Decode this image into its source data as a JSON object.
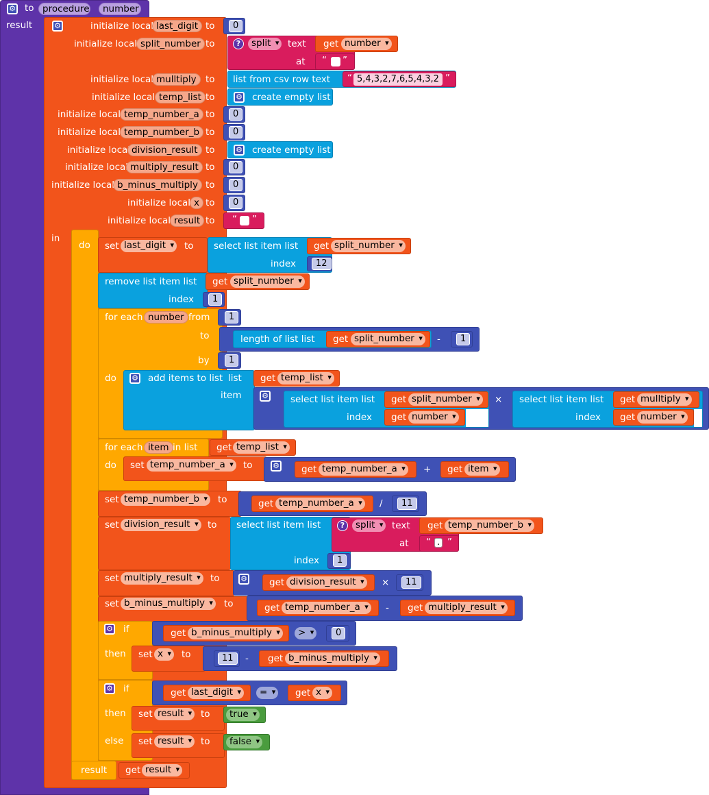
{
  "procedure": {
    "keyword_to": "to",
    "name": "procedure",
    "param": "number",
    "result_label": "result"
  },
  "locals": [
    {
      "label": "initialize local",
      "name": "last_digit",
      "to": "to",
      "value": "0"
    },
    {
      "label": "initialize local",
      "name": "split_number",
      "to": "to"
    },
    {
      "label": "initialize local",
      "name": "mulltiply",
      "to": "to"
    },
    {
      "label": "initialize local",
      "name": "temp_list",
      "to": "to"
    },
    {
      "label": "initialize local",
      "name": "temp_number_a",
      "to": "to",
      "value": "0"
    },
    {
      "label": "initialize local",
      "name": "temp_number_b",
      "to": "to",
      "value": "0"
    },
    {
      "label": "initialize local",
      "name": "division_result",
      "to": "to"
    },
    {
      "label": "initialize local",
      "name": "multiply_result",
      "to": "to",
      "value": "0"
    },
    {
      "label": "initialize local",
      "name": "b_minus_multiply",
      "to": "to",
      "value": "0"
    },
    {
      "label": "initialize local",
      "name": "x",
      "to": "to",
      "value": "0"
    },
    {
      "label": "initialize local",
      "name": "result",
      "to": "to"
    }
  ],
  "split_block": {
    "op": "split",
    "text_label": "text",
    "at_label": "at",
    "get": "get",
    "var": "number"
  },
  "csv_block": {
    "label": "list from csv row text",
    "value": "5,4,3,2,7,6,5,4,3,2"
  },
  "empty_list": "create empty list",
  "keywords": {
    "in": "in",
    "do": "do",
    "set": "set",
    "to": "to",
    "get": "get",
    "index": "index",
    "result": "result",
    "if": "if",
    "then": "then",
    "else": "else",
    "from": "from",
    "by": "by",
    "item": "item"
  },
  "stmts": {
    "set_last_digit": {
      "var": "last_digit",
      "select_label": "select list item  list",
      "list_var": "split_number",
      "index": "12"
    },
    "remove_item": {
      "label": "remove list item  list",
      "list_var": "split_number",
      "index": "1"
    },
    "for_range": {
      "label": "for each",
      "var": "number",
      "from": "1",
      "length_label": "length of list  list",
      "list_var": "split_number",
      "minus": "-",
      "minus_val": "1",
      "by": "1"
    },
    "add_items": {
      "label": "add items to list",
      "list_label": "list",
      "list_var": "temp_list",
      "item_label": "item",
      "left_select": "select list item  list",
      "left_list": "split_number",
      "left_index": "number",
      "times": "×",
      "right_select": "select list item  list",
      "right_list": "mulltiply",
      "right_index": "number"
    },
    "for_list": {
      "label": "for each",
      "var": "item",
      "in_list": "in list",
      "list_var": "temp_list"
    },
    "set_temp_a": {
      "var": "temp_number_a",
      "a": "temp_number_a",
      "plus": "+",
      "b": "item"
    },
    "set_temp_b": {
      "var": "temp_number_b",
      "a": "temp_number_a",
      "div": "/",
      "b": "11"
    },
    "set_division": {
      "var": "division_result",
      "select_label": "select list item  list",
      "split": "split",
      "text_label": "text",
      "text_var": "temp_number_b",
      "at_label": "at",
      "at_val": ".",
      "index": "1"
    },
    "set_multiply": {
      "var": "multiply_result",
      "a": "division_result",
      "times": "×",
      "b": "11"
    },
    "set_bminus": {
      "var": "b_minus_multiply",
      "a": "temp_number_a",
      "minus": "-",
      "b": "multiply_result"
    },
    "if1": {
      "a": "b_minus_multiply",
      "op": ">",
      "b": "0",
      "set_var": "x",
      "n": "11",
      "minus": "-",
      "c": "b_minus_multiply"
    },
    "if2": {
      "a": "last_digit",
      "op": "=",
      "b": "x",
      "set_var": "result",
      "true": "true",
      "false": "false"
    },
    "final": {
      "var": "result"
    }
  }
}
